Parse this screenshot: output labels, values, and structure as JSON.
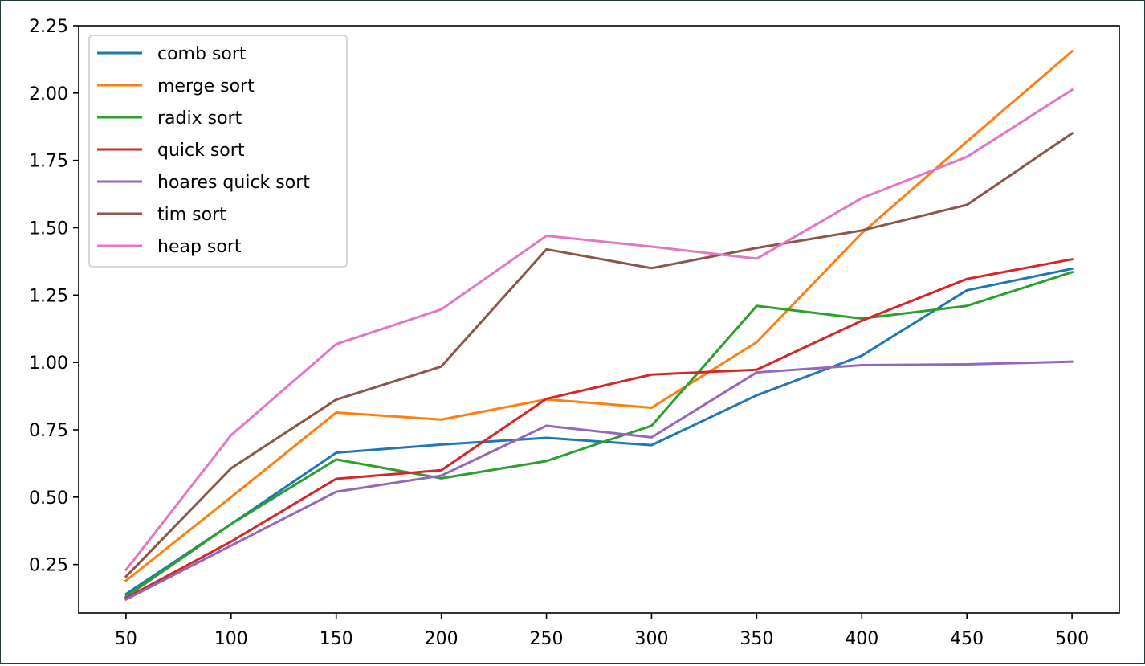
{
  "chart_data": {
    "type": "line",
    "title": "",
    "xlabel": "",
    "ylabel": "",
    "x": [
      50,
      100,
      150,
      200,
      250,
      300,
      350,
      400,
      450,
      500
    ],
    "xticks": [
      "50",
      "100",
      "150",
      "200",
      "250",
      "300",
      "350",
      "400",
      "450",
      "500"
    ],
    "yticks": [
      0.25,
      0.5,
      0.75,
      1.0,
      1.25,
      1.5,
      1.75,
      2.0,
      2.25
    ],
    "yticklabels": [
      "0.25",
      "0.50",
      "0.75",
      "1.00",
      "1.25",
      "1.50",
      "1.75",
      "2.00",
      "2.25"
    ],
    "xlim": [
      27.5,
      522.5
    ],
    "ylim": [
      0.07,
      2.25
    ],
    "grid": false,
    "legend_position": "top-left",
    "series": [
      {
        "name": "comb sort",
        "color": "#1f77b4",
        "values": [
          0.14,
          0.4,
          0.665,
          0.695,
          0.72,
          0.693,
          0.878,
          1.025,
          1.268,
          1.348
        ]
      },
      {
        "name": "merge sort",
        "color": "#ff7f0e",
        "values": [
          0.19,
          0.5,
          0.814,
          0.788,
          0.863,
          0.832,
          1.075,
          1.48,
          1.82,
          2.155
        ]
      },
      {
        "name": "radix sort",
        "color": "#2ca02c",
        "values": [
          0.13,
          0.4,
          0.64,
          0.57,
          0.634,
          0.765,
          1.21,
          1.163,
          1.21,
          1.335
        ]
      },
      {
        "name": "quick sort",
        "color": "#d62728",
        "values": [
          0.125,
          0.335,
          0.568,
          0.6,
          0.865,
          0.955,
          0.973,
          1.155,
          1.31,
          1.383
        ]
      },
      {
        "name": "hoares quick sort",
        "color": "#9467bd",
        "values": [
          0.12,
          0.32,
          0.52,
          0.58,
          0.765,
          0.722,
          0.963,
          0.99,
          0.993,
          1.003
        ]
      },
      {
        "name": "tim sort",
        "color": "#8c564b",
        "values": [
          0.205,
          0.607,
          0.862,
          0.985,
          1.42,
          1.35,
          1.425,
          1.49,
          1.585,
          1.85
        ]
      },
      {
        "name": "heap sort",
        "color": "#e377c2",
        "values": [
          0.23,
          0.73,
          1.068,
          1.197,
          1.47,
          1.43,
          1.385,
          1.61,
          1.763,
          2.012
        ]
      }
    ]
  }
}
